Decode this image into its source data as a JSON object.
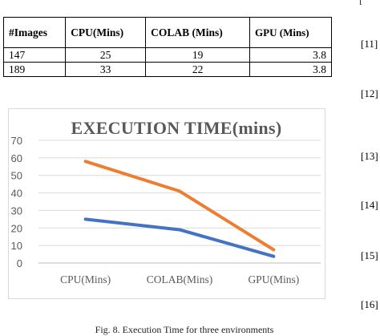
{
  "table": {
    "headers": [
      "#Images",
      "CPU(Mins)",
      "COLAB (Mins)",
      "GPU (Mins)"
    ],
    "rows": [
      [
        "147",
        "25",
        "19",
        "3.8"
      ],
      [
        "189",
        "33",
        "22",
        "3.8"
      ]
    ]
  },
  "chart_data": {
    "type": "line",
    "title": "EXECUTION TIME(mins)",
    "categories": [
      "CPU(Mins)",
      "COLAB(Mins)",
      "GPU(Mins)"
    ],
    "y_ticks": [
      "0",
      "10",
      "20",
      "30",
      "40",
      "50",
      "60",
      "70"
    ],
    "ylim": [
      0,
      70
    ],
    "series": [
      {
        "values": [
          25,
          19,
          3.8
        ],
        "color": "#4472c4"
      },
      {
        "values": [
          58,
          41,
          7.6
        ],
        "color": "#ed7d31"
      }
    ],
    "gridlines": true,
    "legend": "none"
  },
  "references": [
    "[11]",
    "[12]",
    "[13]",
    "[14]",
    "[15]",
    "[16]"
  ],
  "caption": "Fig. 8. Execution Time for three environments"
}
